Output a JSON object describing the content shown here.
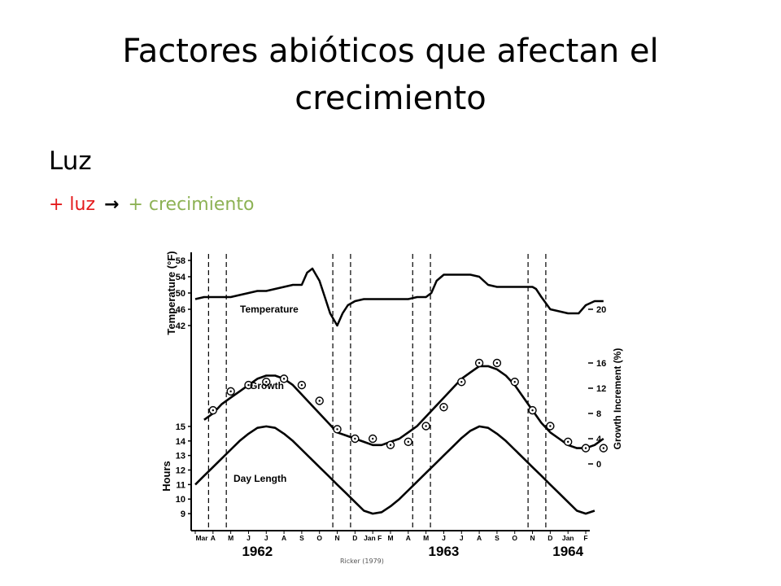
{
  "slide": {
    "title": "Factores abióticos que afectan el crecimiento",
    "heading": "Luz",
    "bullet": {
      "left": "+ luz",
      "arrow": "→",
      "right": "+ crecimiento"
    },
    "credit": "Ricker (1979)"
  },
  "colors": {
    "red": "#e41a1c",
    "green": "#8db255",
    "ink": "#000000"
  },
  "chart_data": {
    "type": "line",
    "x_month_labels": [
      "Mar",
      "A",
      "M",
      "J",
      "J",
      "A",
      "S",
      "O",
      "N",
      "D",
      "Jan F",
      "M",
      "A",
      "M",
      "J",
      "J",
      "A",
      "S",
      "O",
      "N",
      "D",
      "Jan",
      "F"
    ],
    "year_labels": [
      "1962",
      "1963",
      "1964"
    ],
    "left_axis_top": {
      "label": "Temperature (°F)",
      "ticks": [
        "58",
        "54",
        "50",
        "46",
        "42"
      ],
      "range": [
        40,
        60
      ]
    },
    "left_axis_bottom": {
      "label": "Hours",
      "ticks": [
        "15",
        "14",
        "13",
        "12",
        "11",
        "10",
        "9"
      ],
      "range": [
        8.5,
        15.5
      ]
    },
    "right_axis": {
      "label": "Growth Increment (%)",
      "ticks": [
        "20",
        "16",
        "12",
        "8",
        "4",
        "0"
      ]
    },
    "series": [
      {
        "name": "Temperature",
        "axis": "left_top",
        "x": [
          0,
          0.5,
          1,
          1.5,
          2,
          2.5,
          3,
          3.5,
          4,
          4.5,
          5,
          5.5,
          6,
          6.3,
          6.6,
          7,
          7.3,
          7.6,
          8,
          8.3,
          8.6,
          9,
          9.5,
          10,
          10.5,
          11,
          11.5,
          12,
          12.5,
          13,
          13.3,
          13.6,
          14,
          14.5,
          15,
          15.5,
          16,
          16.5,
          17,
          17.5,
          18,
          18.5,
          19,
          19.2,
          19.5,
          20,
          20.5,
          21,
          21.3,
          21.6,
          22,
          22.5,
          23
        ],
        "values": [
          48.5,
          49,
          49,
          49,
          49,
          49.5,
          50,
          50.5,
          50.5,
          51,
          51.5,
          52,
          52,
          55,
          56,
          53,
          49,
          45,
          42,
          45,
          47,
          48,
          48.5,
          48.5,
          48.5,
          48.5,
          48.5,
          48.5,
          49,
          49,
          50,
          53,
          54.5,
          54.5,
          54.5,
          54.5,
          54,
          52,
          51.5,
          51.5,
          51.5,
          51.5,
          51.5,
          51,
          49,
          46,
          45.5,
          45,
          45,
          45,
          47,
          48,
          48
        ]
      },
      {
        "name": "Growth",
        "axis": "right",
        "x": [
          0.5,
          1,
          1.5,
          2,
          2.5,
          3,
          3.5,
          4,
          4.5,
          5,
          5.5,
          6,
          6.5,
          7,
          7.5,
          8,
          8.5,
          9,
          9.5,
          10,
          10.5,
          11,
          11.5,
          12,
          12.5,
          13,
          13.5,
          14,
          14.5,
          15,
          15.5,
          16,
          16.5,
          17,
          17.5,
          18,
          18.5,
          19,
          19.5,
          20,
          20.5,
          21,
          21.5,
          22,
          22.5,
          23
        ],
        "values": [
          7,
          8,
          9.5,
          10.5,
          11.5,
          12.5,
          13.5,
          14,
          14,
          13.5,
          12.5,
          11,
          9.5,
          8,
          6.5,
          5,
          4.5,
          4,
          3.5,
          3,
          3,
          3.5,
          4,
          5,
          6,
          7.5,
          9,
          10.5,
          12,
          13.5,
          14.5,
          15.5,
          15.5,
          15,
          14,
          12.5,
          10.5,
          8.5,
          6.5,
          5,
          4,
          3,
          2.5,
          2.5,
          3,
          4
        ]
      },
      {
        "name": "Day Length",
        "axis": "left_bottom",
        "x": [
          0,
          0.5,
          1,
          1.5,
          2,
          2.5,
          3,
          3.5,
          4,
          4.5,
          5,
          5.5,
          6,
          6.5,
          7,
          7.5,
          8,
          8.5,
          9,
          9.5,
          10,
          10.5,
          11,
          11.5,
          12,
          12.5,
          13,
          13.5,
          14,
          14.5,
          15,
          15.5,
          16,
          16.5,
          17,
          17.5,
          18,
          18.5,
          19,
          19.5,
          20,
          20.5,
          21,
          21.5,
          22,
          22.5
        ],
        "values": [
          11,
          11.6,
          12.2,
          12.8,
          13.4,
          14,
          14.5,
          14.9,
          15,
          14.9,
          14.5,
          14,
          13.4,
          12.8,
          12.2,
          11.6,
          11,
          10.4,
          9.8,
          9.2,
          9,
          9.1,
          9.5,
          10,
          10.6,
          11.2,
          11.8,
          12.4,
          13,
          13.6,
          14.2,
          14.7,
          15,
          14.9,
          14.5,
          14,
          13.4,
          12.8,
          12.2,
          11.6,
          11,
          10.4,
          9.8,
          9.2,
          9,
          9.2
        ]
      },
      {
        "name": "Growth observations",
        "axis": "right",
        "x": [
          1,
          2,
          3,
          4,
          5,
          6,
          7,
          8,
          9,
          10,
          11,
          12,
          13,
          14,
          15,
          16,
          17,
          18,
          19,
          20,
          21,
          22,
          23
        ],
        "values": [
          8.5,
          11.5,
          12.5,
          13,
          13.5,
          12.5,
          10,
          5.5,
          4,
          4,
          3,
          3.5,
          6,
          9,
          13,
          16,
          16,
          13,
          8.5,
          6,
          3.5,
          2.5,
          2.5
        ]
      }
    ],
    "dashed_lines_x": [
      0.75,
      1.75,
      7.75,
      8.75,
      12.25,
      13.25,
      18.75,
      19.75
    ],
    "ylim_hint": "three stacked panels"
  }
}
